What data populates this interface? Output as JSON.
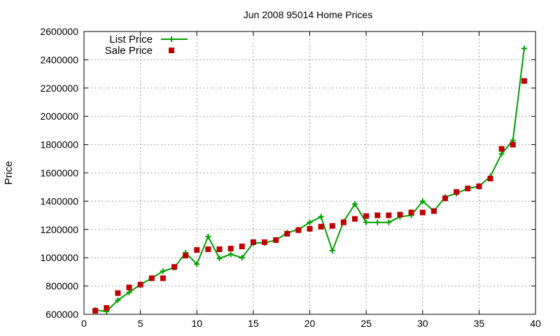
{
  "chart_data": {
    "type": "line",
    "title": "Jun 2008 95014 Home Prices",
    "xlabel": "",
    "ylabel": "Price",
    "xlim": [
      0,
      40
    ],
    "ylim": [
      600000,
      2600000
    ],
    "xticks": [
      0,
      5,
      10,
      15,
      20,
      25,
      30,
      35,
      40
    ],
    "xtick_labels": [
      "0",
      "5",
      "10",
      "15",
      "20",
      "25",
      "30",
      "35",
      "40"
    ],
    "yticks": [
      600000,
      800000,
      1000000,
      1200000,
      1400000,
      1600000,
      1800000,
      2000000,
      2200000,
      2400000,
      2600000
    ],
    "ytick_labels": [
      "600000",
      "800000",
      "1000000",
      "1200000",
      "1400000",
      "1600000",
      "1800000",
      "2000000",
      "2200000",
      "2400000",
      "2600000"
    ],
    "grid": true,
    "legend_position": "top-left",
    "x": [
      1,
      2,
      3,
      4,
      5,
      6,
      7,
      8,
      9,
      10,
      11,
      12,
      13,
      14,
      15,
      16,
      17,
      18,
      19,
      20,
      21,
      22,
      23,
      24,
      25,
      26,
      27,
      28,
      29,
      30,
      31,
      32,
      33,
      34,
      35,
      36,
      37,
      38,
      39
    ],
    "series": [
      {
        "name": "List Price",
        "style": "line-plus",
        "color": "#00a000",
        "values": [
          630000,
          620000,
          700000,
          755000,
          810000,
          855000,
          905000,
          930000,
          1035000,
          955000,
          1150000,
          995000,
          1025000,
          1000000,
          1105000,
          1105000,
          1125000,
          1175000,
          1200000,
          1250000,
          1290000,
          1050000,
          1255000,
          1380000,
          1250000,
          1250000,
          1250000,
          1290000,
          1300000,
          1400000,
          1330000,
          1430000,
          1455000,
          1490000,
          1505000,
          1575000,
          1735000,
          1830000,
          2480000
        ]
      },
      {
        "name": "Sale Price",
        "style": "square",
        "color": "#c00000",
        "values": [
          625000,
          645000,
          750000,
          790000,
          810000,
          855000,
          855000,
          935000,
          1015000,
          1055000,
          1060000,
          1060000,
          1065000,
          1080000,
          1110000,
          1110000,
          1125000,
          1170000,
          1195000,
          1205000,
          1220000,
          1225000,
          1250000,
          1275000,
          1295000,
          1300000,
          1300000,
          1305000,
          1320000,
          1320000,
          1330000,
          1420000,
          1465000,
          1490000,
          1505000,
          1560000,
          1770000,
          1800000,
          2250000
        ]
      }
    ]
  }
}
